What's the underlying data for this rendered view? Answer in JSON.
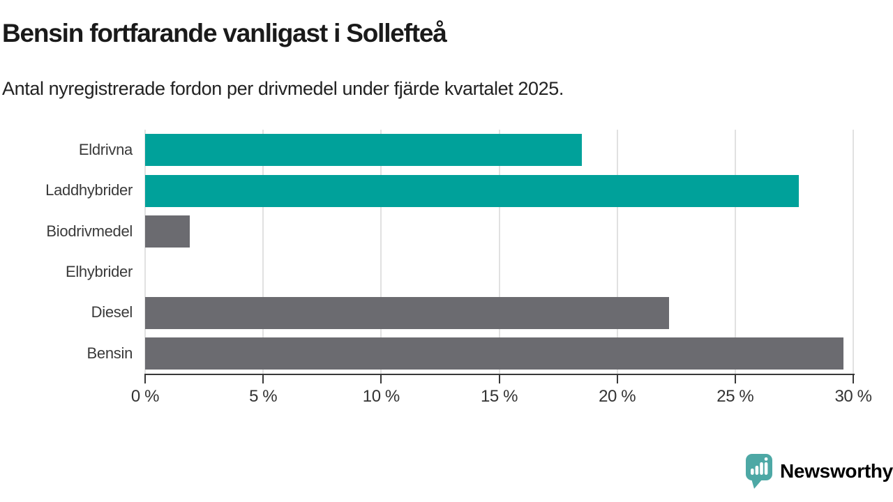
{
  "chart_data": {
    "type": "bar",
    "orientation": "horizontal",
    "title": "Bensin fortfarande vanligast i Sollefteå",
    "subtitle": "Antal nyregistrerade fordon per drivmedel under fjärde kvartalet 2025.",
    "categories": [
      "Eldrivna",
      "Laddhybrider",
      "Biodrivmedel",
      "Elhybrider",
      "Diesel",
      "Bensin"
    ],
    "values": [
      18.5,
      27.7,
      1.9,
      0,
      22.2,
      29.6
    ],
    "unit": "%",
    "xlim": [
      0,
      30
    ],
    "x_ticks": [
      0,
      5,
      10,
      15,
      20,
      25,
      30
    ],
    "x_tick_labels": [
      "0 %",
      "5 %",
      "10 %",
      "15 %",
      "20 %",
      "25 %",
      "30 %"
    ],
    "bar_colors": [
      "#00a19a",
      "#00a19a",
      "#6b6b70",
      "#6b6b70",
      "#6b6b70",
      "#6b6b70"
    ],
    "grid": true,
    "legend": "none"
  },
  "colors": {
    "teal_bar": "#00a19a",
    "gray_bar": "#6b6b70",
    "gridline": "#e1e1e1",
    "axis": "#383838",
    "logo_teal": "#429e9c"
  },
  "footer": {
    "brand": "Newsworthy"
  }
}
